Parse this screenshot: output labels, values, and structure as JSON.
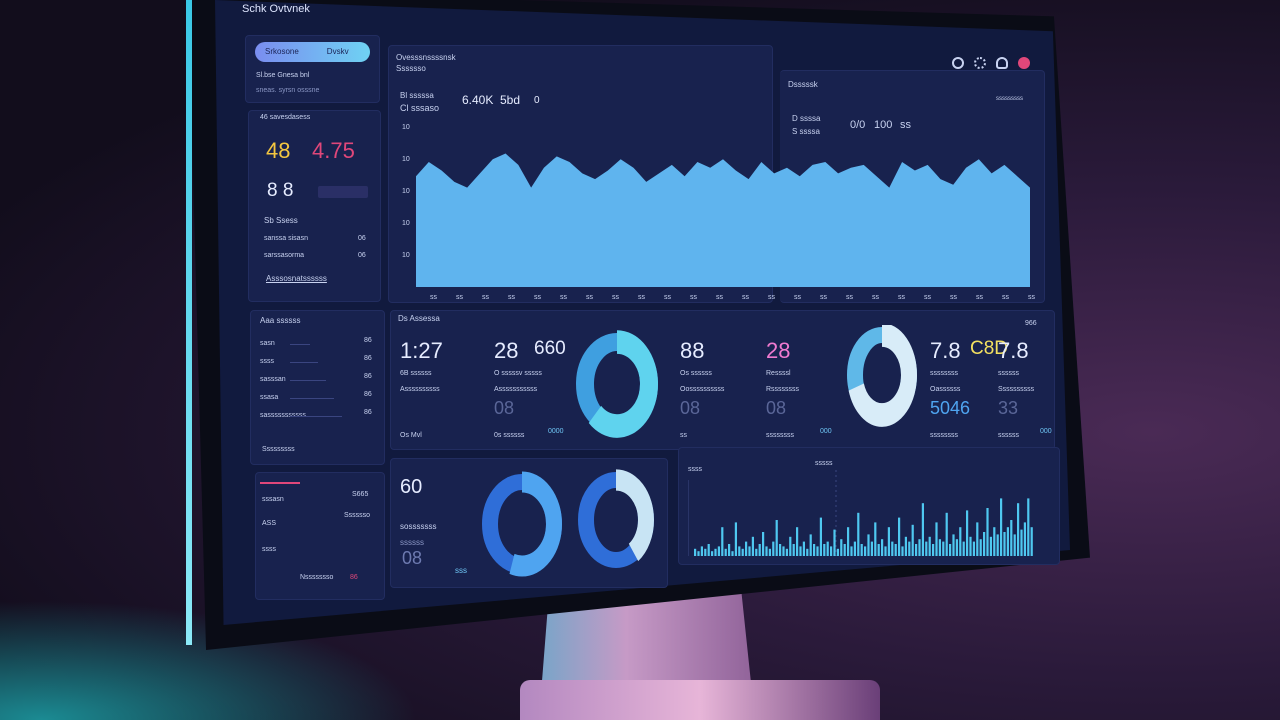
{
  "app": {
    "title": "Schk Ovtvnek"
  },
  "sidebar": {
    "toggle": {
      "left": "Srkosone",
      "right": "Dvskv"
    },
    "top_lines": [
      "Sl.bse Gnesa bnl",
      "sneas. syrsn osssne"
    ],
    "kpi": {
      "heading": "46 savesdasess",
      "val1": "48",
      "val2": "4.75",
      "val3": "8 8",
      "sub": "Sb Ssess",
      "rows": [
        {
          "label": "sanssa sisasn",
          "val": "06"
        },
        {
          "label": "sarssasorma",
          "val": "06"
        }
      ],
      "link": "Asssosnatssssss"
    },
    "list": {
      "heading": "Aaa ssssss",
      "rows": [
        {
          "label": "sasn",
          "val": "86"
        },
        {
          "label": "ssss",
          "val": "86"
        },
        {
          "label": "sasssan",
          "val": "86"
        },
        {
          "label": "ssasa",
          "val": "86"
        },
        {
          "label": "sasssssssssss",
          "val": "86"
        }
      ],
      "footer": "Sssssssss"
    },
    "bottom": {
      "rows": [
        {
          "label": "sssasn",
          "val": "S665"
        },
        {
          "label": "ASS",
          "val": "Sssssso"
        },
        {
          "label": "ssss",
          "val": ""
        }
      ],
      "footer": "Nssssssso",
      "badge": "86"
    }
  },
  "main": {
    "header": {
      "line1": "Ovesssnssssnsk",
      "line2": "Sssssso",
      "kpis": [
        "6.40K",
        "5bd",
        "0"
      ],
      "labels": [
        "Bl sssssa",
        "Cl sssaso"
      ],
      "right_title": "Dsssssk",
      "right_sub": "sssssssss",
      "right_kpis": [
        "0/0",
        "100",
        "ss"
      ],
      "right_labels": [
        "D ssssa",
        "S ssssa"
      ],
      "icons": [
        "globe",
        "settings",
        "user",
        "bell"
      ]
    },
    "chart": {
      "yticks": [
        "10",
        "10",
        "10",
        "10",
        "10"
      ],
      "xticks": [
        "ss",
        "ss",
        "ss",
        "ss",
        "ss",
        "ss",
        "ss",
        "ss",
        "ss",
        "ss",
        "ss",
        "ss",
        "ss",
        "ss",
        "ss",
        "ss",
        "ss",
        "ss",
        "ss",
        "ss",
        "ss",
        "ss",
        "ss",
        "ss"
      ],
      "values": [
        78,
        88,
        82,
        74,
        70,
        80,
        90,
        94,
        86,
        70,
        84,
        92,
        88,
        80,
        76,
        82,
        90,
        84,
        74,
        80,
        86,
        78,
        88,
        84,
        90,
        82,
        76,
        88,
        80,
        84,
        78,
        86,
        88,
        80,
        84,
        86,
        78,
        70,
        88,
        82,
        86,
        76,
        72,
        84,
        90,
        80,
        86,
        78,
        70
      ]
    },
    "mid": {
      "heading": "Ds Assessa",
      "right": "966",
      "cards": [
        {
          "v1": "1:27",
          "v2": "",
          "l1": "6B ssssss",
          "l2": "Assssssssss",
          "v3": "",
          "l3": "Os Mvl",
          "color": "#e6ecff"
        },
        {
          "v1": "28",
          "v2": "660",
          "l1": "O sssssv sssss",
          "l2": "Asssssssssss",
          "v3": "08",
          "l3": "0s ssssss",
          "color": "#e6ecff"
        },
        {
          "v1": "88",
          "v2": "",
          "l1": "Os ssssss",
          "l2": "Oossssssssss",
          "v3": "08",
          "l3": "ss",
          "color": "#e6ecff"
        },
        {
          "v1": "28",
          "v2": "",
          "l1": "Ressssl",
          "l2": "Rssssssss",
          "v3": "08",
          "l3": "ssssssss",
          "color": "#f07ad0"
        },
        {
          "v1": "7.8",
          "v2": "C8D",
          "l1": "ssssssss",
          "l2": "Oassssss",
          "v3": "5046",
          "l3": "ssssssss",
          "color": "#e6ecff"
        },
        {
          "v1": "7.8",
          "v2": "",
          "l1": "ssssss",
          "l2": "Ssssssssss",
          "v3": "33",
          "l3": "ssssss",
          "color": "#e6ecff"
        }
      ],
      "tags": [
        "0000",
        "000",
        "000"
      ],
      "donuts": [
        0.62,
        0.7
      ]
    },
    "bottom_left": {
      "v1": "60",
      "l1": "sosssssss",
      "l2": "ssssss",
      "v2": "08",
      "tag": "sss",
      "donuts": [
        0.55,
        0.4
      ]
    },
    "bottom_right": {
      "title": "ssss",
      "label": "sssss",
      "bars": [
        3,
        2,
        4,
        3,
        5,
        2,
        3,
        4,
        12,
        3,
        5,
        2,
        14,
        4,
        3,
        6,
        4,
        8,
        3,
        5,
        10,
        4,
        3,
        6,
        15,
        5,
        4,
        3,
        8,
        5,
        12,
        4,
        6,
        3,
        9,
        5,
        4,
        16,
        5,
        6,
        4,
        11,
        3,
        7,
        5,
        12,
        4,
        6,
        18,
        5,
        4,
        9,
        6,
        14,
        5,
        7,
        4,
        12,
        6,
        5,
        16,
        4,
        8,
        6,
        13,
        5,
        7,
        22,
        6,
        8,
        5,
        14,
        7,
        6,
        18,
        5,
        9,
        7,
        12,
        6,
        19,
        8,
        6,
        14,
        7,
        10,
        20,
        8,
        12,
        9,
        24,
        10,
        12,
        15,
        9,
        22,
        11,
        14,
        24,
        12
      ]
    }
  },
  "colors": {
    "accent": "#6fc6f5",
    "panel": "#18224e",
    "screen": "#111a3e",
    "yellow": "#f3c640",
    "pink": "#e0477a"
  }
}
